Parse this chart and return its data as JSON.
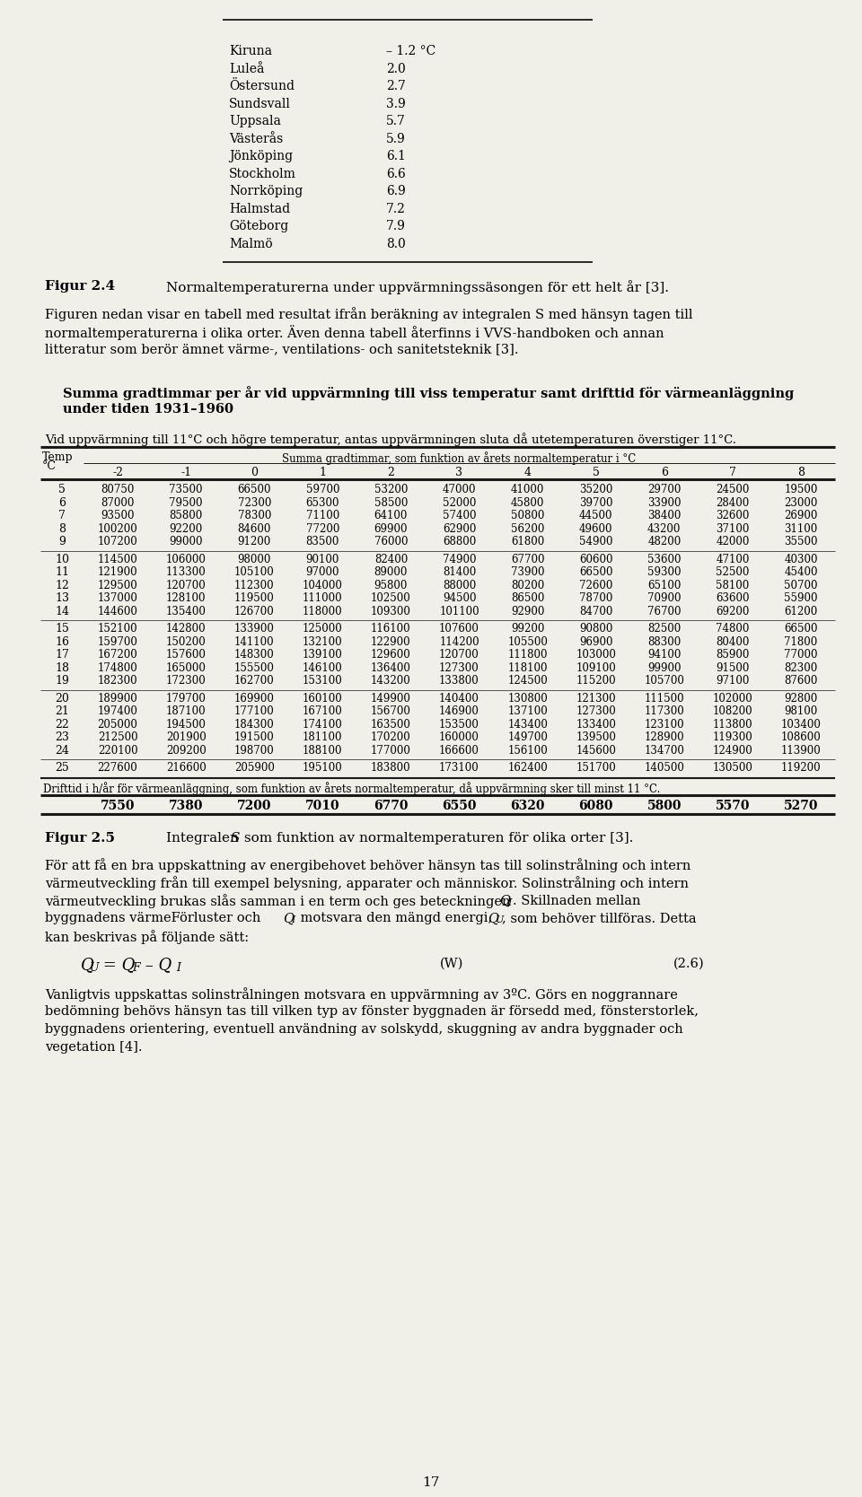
{
  "bg_color": "#f0efe8",
  "city_table": {
    "cities": [
      "Kiruna",
      "Luleå",
      "Östersund",
      "Sundsvall",
      "Uppsala",
      "Västerås",
      "Jönköping",
      "Stockholm",
      "Norrköping",
      "Halmstad",
      "Göteborg",
      "Malmö"
    ],
    "values": [
      "– 1.2 °C",
      "2.0",
      "2.7",
      "3.9",
      "5.7",
      "5.9",
      "6.1",
      "6.6",
      "6.9",
      "7.2",
      "7.9",
      "8.0"
    ]
  },
  "figur_24_label": "Figur 2.4",
  "figur_24_text": "Normaltemperaturerna under uppvärmningssäsongen för ett helt år [3].",
  "para1_lines": [
    "Figuren nedan visar en tabell med resultat ifrån beräkning av integralen S med hänsyn tagen till",
    "normaltemperaturerna i olika orter. Även denna tabell återfinns i VVS-handboken och annan",
    "litteratur som berör ämnet värme-, ventilations- och sanitetsteknik [3]."
  ],
  "table_title_lines": [
    "Summa gradtimmar per år vid uppvärmning till viss temperatur samt drifttid för värmeanläggning",
    "under tiden 1931–1960"
  ],
  "table_subtitle": "Vid uppvärmning till 11°C och högre temperatur, antas uppvärmningen sluta då utetemperaturen överstiger 11°C.",
  "col_header_main": "Summa gradtimmar, som funktion av årets normaltemperatur i °C",
  "col_headers": [
    "-2",
    "-1",
    "0",
    "1",
    "2",
    "3",
    "4",
    "5",
    "6",
    "7",
    "8"
  ],
  "table_data": [
    [
      5,
      80750,
      73500,
      66500,
      59700,
      53200,
      47000,
      41000,
      35200,
      29700,
      24500,
      19500
    ],
    [
      6,
      87000,
      79500,
      72300,
      65300,
      58500,
      52000,
      45800,
      39700,
      33900,
      28400,
      23000
    ],
    [
      7,
      93500,
      85800,
      78300,
      71100,
      64100,
      57400,
      50800,
      44500,
      38400,
      32600,
      26900
    ],
    [
      8,
      100200,
      92200,
      84600,
      77200,
      69900,
      62900,
      56200,
      49600,
      43200,
      37100,
      31100
    ],
    [
      9,
      107200,
      99000,
      91200,
      83500,
      76000,
      68800,
      61800,
      54900,
      48200,
      42000,
      35500
    ],
    [
      10,
      114500,
      106000,
      98000,
      90100,
      82400,
      74900,
      67700,
      60600,
      53600,
      47100,
      40300
    ],
    [
      11,
      121900,
      113300,
      105100,
      97000,
      89000,
      81400,
      73900,
      66500,
      59300,
      52500,
      45400
    ],
    [
      12,
      129500,
      120700,
      112300,
      104000,
      95800,
      88000,
      80200,
      72600,
      65100,
      58100,
      50700
    ],
    [
      13,
      137000,
      128100,
      119500,
      111000,
      102500,
      94500,
      86500,
      78700,
      70900,
      63600,
      55900
    ],
    [
      14,
      144600,
      135400,
      126700,
      118000,
      109300,
      101100,
      92900,
      84700,
      76700,
      69200,
      61200
    ],
    [
      15,
      152100,
      142800,
      133900,
      125000,
      116100,
      107600,
      99200,
      90800,
      82500,
      74800,
      66500
    ],
    [
      16,
      159700,
      150200,
      141100,
      132100,
      122900,
      114200,
      105500,
      96900,
      88300,
      80400,
      71800
    ],
    [
      17,
      167200,
      157600,
      148300,
      139100,
      129600,
      120700,
      111800,
      103000,
      94100,
      85900,
      77000
    ],
    [
      18,
      174800,
      165000,
      155500,
      146100,
      136400,
      127300,
      118100,
      109100,
      99900,
      91500,
      82300
    ],
    [
      19,
      182300,
      172300,
      162700,
      153100,
      143200,
      133800,
      124500,
      115200,
      105700,
      97100,
      87600
    ],
    [
      20,
      189900,
      179700,
      169900,
      160100,
      149900,
      140400,
      130800,
      121300,
      111500,
      102000,
      92800
    ],
    [
      21,
      197400,
      187100,
      177100,
      167100,
      156700,
      146900,
      137100,
      127300,
      117300,
      108200,
      98100
    ],
    [
      22,
      205000,
      194500,
      184300,
      174100,
      163500,
      153500,
      143400,
      133400,
      123100,
      113800,
      103400
    ],
    [
      23,
      212500,
      201900,
      191500,
      181100,
      170200,
      160000,
      149700,
      139500,
      128900,
      119300,
      108600
    ],
    [
      24,
      220100,
      209200,
      198700,
      188100,
      177000,
      166600,
      156100,
      145600,
      134700,
      124900,
      113900
    ],
    [
      25,
      227600,
      216600,
      205900,
      195100,
      183800,
      173100,
      162400,
      151700,
      140500,
      130500,
      119200
    ]
  ],
  "drift_label": "Drifttid i h/år för värmeanläggning, som funktion av årets normaltemperatur, då uppvärmning sker till minst 11 °C.",
  "drift_values": [
    7550,
    7380,
    7200,
    7010,
    6770,
    6550,
    6320,
    6080,
    5800,
    5570,
    5270
  ],
  "figur_25_label": "Figur 2.5",
  "figur_25_text": "Integralen S som funktion av normaltemperaturen för olika orter [3].",
  "para2_lines": [
    "För att få en bra uppskattning av energibehovet behöver hänsyn tas till solinstrålning och intern",
    "värmeutveckling från till exempel belysning, apparater och människor. Solinstrålning och intern",
    "värmeutveckling brukas slås samman i en term och ges beteckningen",
    "byggnadens värmeFörluster och",
    "motsvara den mängd energi,",
    ", som behöver tillföras. Detta",
    "kan beskrivas på följande sätt:"
  ],
  "para3_lines": [
    "Vanligtvis uppskattas solinstrålningen motsvara en uppvärmning av 3ºC. Görs en noggrannare",
    "bedömning behövs hänsyn tas till vilken typ av fönster byggnaden är försedd med, fönsterstorlek,",
    "byggnadens orientering, eventuell användning av solskydd, skuggning av andra byggnader och",
    "vegetation [4]."
  ],
  "page_number": "17"
}
